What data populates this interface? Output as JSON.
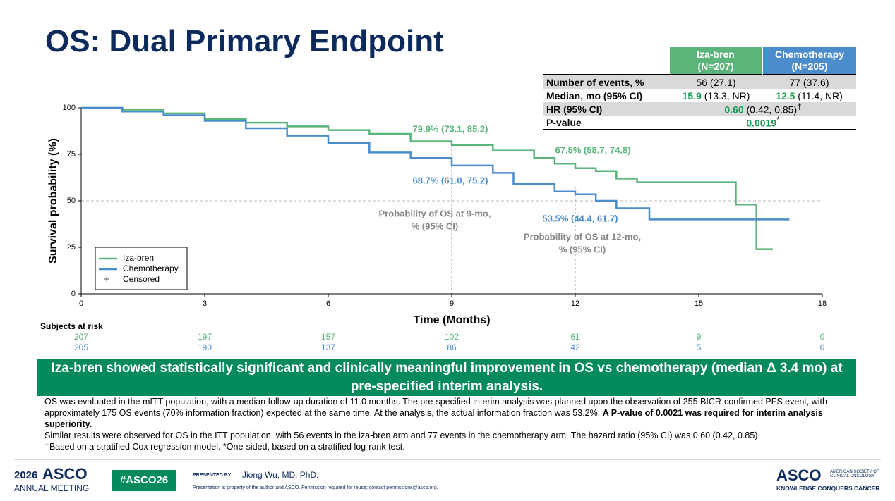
{
  "title": "OS: Dual Primary Endpoint",
  "summary_table": {
    "columns": [
      {
        "name": "Iza-bren",
        "n": "(N=207)",
        "color": "#5bb57a"
      },
      {
        "name": "Chemotherapy",
        "n": "(N=205)",
        "color": "#4a8ccc"
      }
    ],
    "events": {
      "label": "Number of events, %",
      "cells": [
        "56 (27.1)",
        "77 (37.6)"
      ]
    },
    "median": {
      "label": "Median, mo (95% CI)",
      "cells": [
        {
          "bold": "15.9",
          "rest": " (13.3, NR)"
        },
        {
          "bold": "12.5",
          "rest": " (11.4, NR)"
        }
      ]
    },
    "hr": {
      "label": "HR (95% CI)",
      "bold": "0.60",
      "rest": " (0.42, 0.85)",
      "mark": "†"
    },
    "p": {
      "label": "P-value",
      "bold": "0.0019",
      "mark": "*"
    }
  },
  "chart_data": {
    "type": "line",
    "xlabel": "Time (Months)",
    "ylabel": "Survival probability (%)",
    "xlim": [
      0,
      18
    ],
    "xticks": [
      0,
      3,
      6,
      9,
      12,
      15,
      18
    ],
    "ylim": [
      0,
      100
    ],
    "yticks": [
      0,
      25,
      50,
      75,
      100
    ],
    "reference_x": [
      9,
      12
    ],
    "reference_y": 50,
    "reference_labels": [
      [
        "Probability of OS at 9-mo,",
        "% (95% CI)"
      ],
      [
        "Probability of OS at 12-mo,",
        "% (95% CI)"
      ]
    ],
    "censored_label": "Censored",
    "risk_title": "Subjects at risk",
    "series": [
      {
        "name": "Iza-bren",
        "color": "#5bb57a",
        "x": [
          0,
          1,
          2,
          3,
          4,
          5,
          6,
          7,
          8,
          9,
          10,
          11,
          11.5,
          12,
          12.5,
          13,
          13.5,
          15.9,
          16.4,
          16.8
        ],
        "values": [
          100,
          99,
          97,
          94,
          92,
          90,
          88,
          86,
          82,
          80,
          77,
          73,
          70,
          67.5,
          66,
          62,
          60,
          48,
          24,
          24
        ],
        "annotations": [
          "79.9% (73.1, 85.2)",
          "67.5% (58.7, 74.8)"
        ],
        "at_risk": [
          207,
          197,
          157,
          102,
          61,
          9,
          0
        ]
      },
      {
        "name": "Chemotherapy",
        "color": "#4a8ccc",
        "x": [
          0,
          1,
          2,
          3,
          4,
          5,
          6,
          7,
          8,
          9,
          10,
          10.5,
          11,
          11.5,
          12,
          12.5,
          13,
          13.8,
          17.2
        ],
        "values": [
          100,
          98,
          96,
          93,
          89,
          85,
          81,
          76,
          73,
          69,
          65,
          59,
          59,
          55,
          53.5,
          50,
          46,
          40,
          40
        ],
        "annotations": [
          "68.7% (61.0, 75.2)",
          "53.5% (44.4, 61.7)"
        ],
        "at_risk": [
          205,
          190,
          137,
          86,
          42,
          5,
          0
        ]
      }
    ]
  },
  "banner": "Iza-bren showed statistically significant and clinically meaningful improvement in OS vs chemotherapy (median Δ 3.4 mo) at pre-specified interim analysis.",
  "notes": {
    "p1": "OS was evaluated in the mITT population, with a median follow-up duration of 11.0 months. The pre-specified interim analysis was planned upon the observation of 255 BICR-confirmed PFS event, with approximately 175 OS events (70% information fraction) expected at the same time. At the analysis, the actual information fraction was 53.2%. ",
    "p1_bold": "A P-value of 0.0021 was required for interim analysis superiority.",
    "p2": "Similar results were observed for OS in the ITT population, with 56 events in the iza-bren arm and 77 events in the chemotherapy arm. The hazard ratio (95% CI) was 0.60 (0.42, 0.85).",
    "p3": "†Based on a stratified Cox regression model. *One-sided, based on a stratified log-rank test."
  },
  "footer": {
    "year": "2026",
    "asco": "ASCO",
    "meeting": "ANNUAL MEETING",
    "hashtag": "#ASCO26",
    "presented_by": "PRESENTED BY:",
    "presenter": "Jiong Wu, MD. PhD.",
    "disclaimer": "Presentation is property of the author and ASCO. Permission required for reuse; contact permissions@asco.org.",
    "logo": "ASCO",
    "society": "AMERICAN SOCIETY OF CLINICAL ONCOLOGY",
    "tagline": "KNOWLEDGE CONQUERS CANCER"
  }
}
